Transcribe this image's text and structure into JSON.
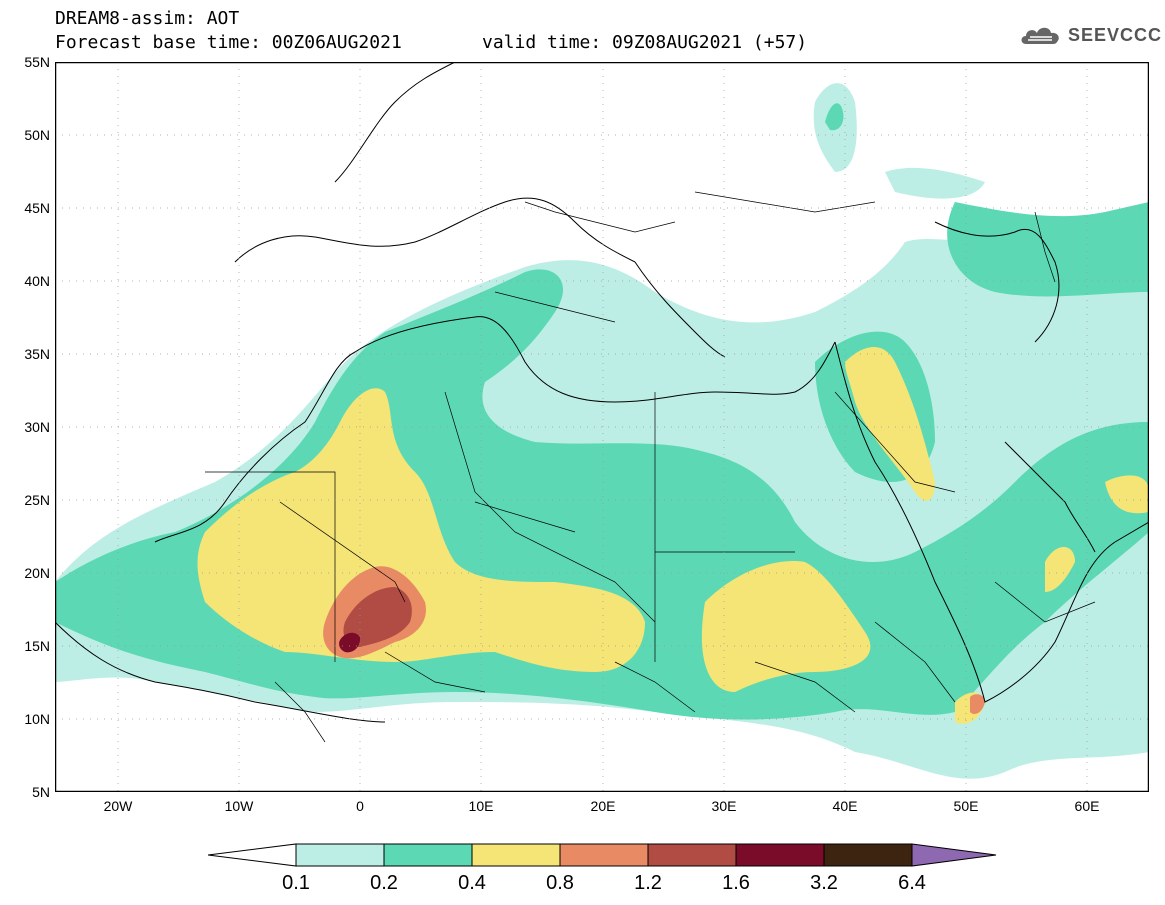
{
  "header": {
    "title_line1": "DREAM8-assim: AOT",
    "title_line2": "Forecast base time: 00Z06AUG2021",
    "valid_time": "valid time: 09Z08AUG2021 (+57)",
    "logo_text": "SEEVCCC"
  },
  "axes": {
    "lat_labels": [
      "55N",
      "50N",
      "45N",
      "40N",
      "35N",
      "30N",
      "25N",
      "20N",
      "15N",
      "10N",
      "5N"
    ],
    "lon_labels": [
      "20W",
      "10W",
      "0",
      "10E",
      "20E",
      "30E",
      "40E",
      "50E",
      "60E"
    ]
  },
  "colorbar": {
    "labels": [
      "0.1",
      "0.2",
      "0.4",
      "0.8",
      "1.2",
      "1.6",
      "3.2",
      "6.4"
    ],
    "colors": [
      "#ffffff",
      "#bdeee6",
      "#5cd9b4",
      "#f5e476",
      "#e88a64",
      "#b04c44",
      "#7a0c2a",
      "#3c2410",
      "#8e68b0"
    ]
  },
  "palette": {
    "ocean": "#ffffff",
    "low": "#bdeee6",
    "mid": "#5cd9b4",
    "high": "#f5e476",
    "higher": "#e88a64",
    "very_high": "#b04c44",
    "extreme": "#7a0c2a"
  }
}
